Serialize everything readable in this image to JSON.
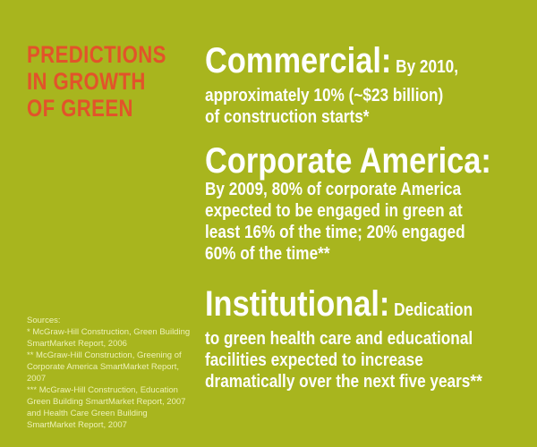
{
  "sidebar": {
    "title": "PREDICTIONS\nIN GROWTH\nOF GREEN",
    "sources_heading": "Sources:",
    "sources": [
      "* McGraw-Hill Construction, Green Building SmartMarket Report, 2006",
      "** McGraw-Hill Construction, Greening of Corporate America SmartMarket Report, 2007",
      "*** McGraw-Hill Construction, Education Green Building SmartMarket Report, 2007 and Health Care Green Building SmartMarket Report, 2007"
    ]
  },
  "predictions": [
    {
      "heading": "Commercial:",
      "lead": " By 2010,",
      "lines": [
        "approximately 10% (~$23 billion)",
        "of construction starts*"
      ]
    },
    {
      "heading": "Corporate America:",
      "lead": "",
      "lines": [
        "By 2009, 80% of corporate America",
        "expected to be engaged in green at",
        "least 16% of the time; 20% engaged",
        "60% of the time**"
      ]
    },
    {
      "heading": "Institutional:",
      "lead": " Dedication",
      "lines": [
        "to green health care and educational",
        "facilities expected to increase",
        "dramatically over the next five years**"
      ]
    }
  ],
  "colors": {
    "background": "#a8b51e",
    "title": "#e2532a",
    "text": "#ffffff",
    "sources": "#eef2b8"
  }
}
